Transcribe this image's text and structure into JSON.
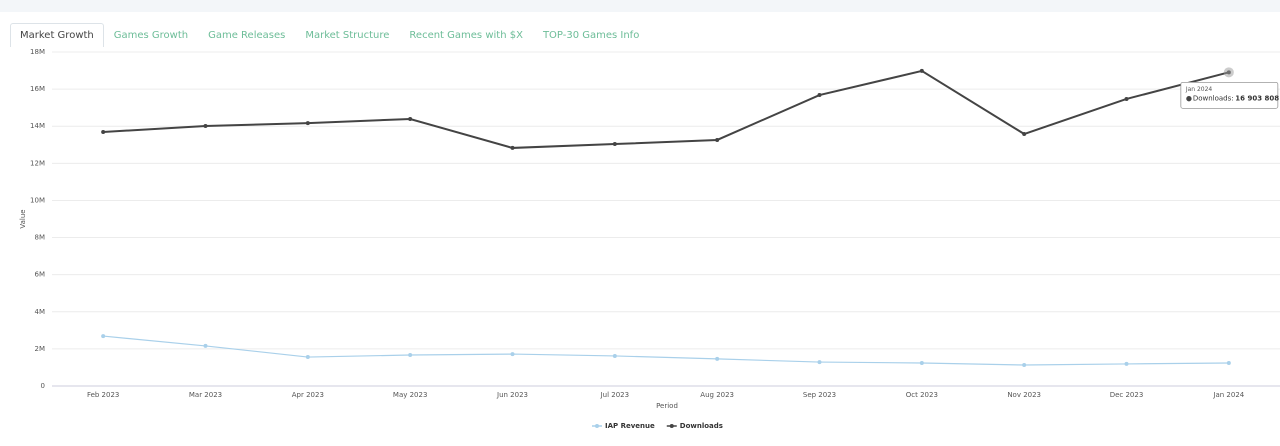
{
  "tabs": [
    "Market Growth",
    "Games Growth",
    "Game Releases",
    "Market Structure",
    "Recent Games with $X",
    "TOP-30 Games Info"
  ],
  "chart_data": {
    "type": "line",
    "x_label": "Period",
    "y_label": "Value",
    "categories": [
      "Feb 2023",
      "Mar 2023",
      "Apr 2023",
      "May 2023",
      "Jun 2023",
      "Jul 2023",
      "Aug 2023",
      "Sep 2023",
      "Oct 2023",
      "Nov 2023",
      "Dec 2023",
      "Jan 2024"
    ],
    "series": [
      {
        "name": "IAP Revenue",
        "color": "#a9d0ea",
        "values": [
          2690000,
          2160000,
          1560000,
          1670000,
          1720000,
          1620000,
          1460000,
          1290000,
          1240000,
          1130000,
          1190000,
          1240000
        ]
      },
      {
        "name": "Downloads",
        "color": "#444444",
        "values": [
          13690000,
          14010000,
          14170000,
          14390000,
          12830000,
          13040000,
          13260000,
          15680000,
          16980000,
          13580000,
          15470000,
          16903808
        ],
        "value_labels": [
          null,
          null,
          null,
          null,
          null,
          null,
          null,
          null,
          null,
          null,
          null,
          "16 903 808"
        ]
      }
    ],
    "ylim": [
      0,
      18000000
    ],
    "yticks": [
      {
        "value": 0,
        "label": "0"
      },
      {
        "value": 2000000,
        "label": "2M"
      },
      {
        "value": 4000000,
        "label": "4M"
      },
      {
        "value": 6000000,
        "label": "6M"
      },
      {
        "value": 8000000,
        "label": "8M"
      },
      {
        "value": 10000000,
        "label": "10M"
      },
      {
        "value": 12000000,
        "label": "12M"
      },
      {
        "value": 14000000,
        "label": "14M"
      },
      {
        "value": 16000000,
        "label": "16M"
      },
      {
        "value": 18000000,
        "label": "18M"
      }
    ],
    "grid": true
  }
}
